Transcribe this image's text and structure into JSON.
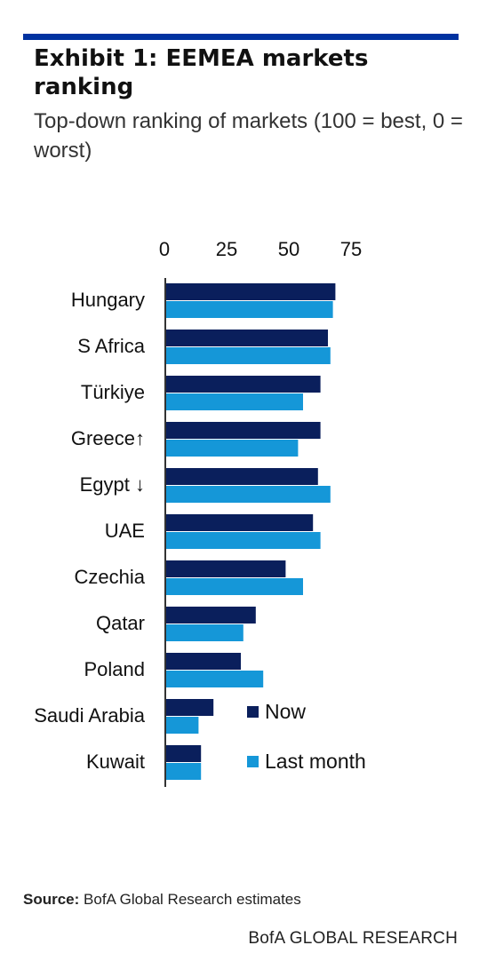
{
  "header": {
    "title": "Exhibit 1: EEMEA markets ranking",
    "subtitle": "Top-down ranking of markets (100 = best, 0 = worst)"
  },
  "footer": {
    "source_label": "Source:",
    "source_text": "BofA Global Research estimates",
    "brand": "BofA GLOBAL RESEARCH"
  },
  "colors": {
    "accent_rule": "#0032a0",
    "now": "#0a1f5c",
    "last_month": "#1597d8"
  },
  "chart_data": {
    "type": "bar",
    "orientation": "horizontal",
    "categories": [
      "Hungary",
      "S Africa",
      "Türkiye",
      "Greece↑",
      "Egypt ↓",
      "UAE",
      "Czechia",
      "Qatar",
      "Poland",
      "Saudi Arabia",
      "Kuwait"
    ],
    "series": [
      {
        "name": "Now",
        "values": [
          68,
          65,
          62,
          62,
          61,
          59,
          48,
          36,
          30,
          19,
          14
        ]
      },
      {
        "name": "Last month",
        "values": [
          67,
          66,
          55,
          53,
          66,
          62,
          55,
          31,
          39,
          13,
          14
        ]
      }
    ],
    "xticks": [
      0,
      25,
      50,
      75
    ],
    "xlim": [
      0,
      100
    ],
    "axis_position": "top",
    "grid": false,
    "legend_position": "bottom-right"
  }
}
